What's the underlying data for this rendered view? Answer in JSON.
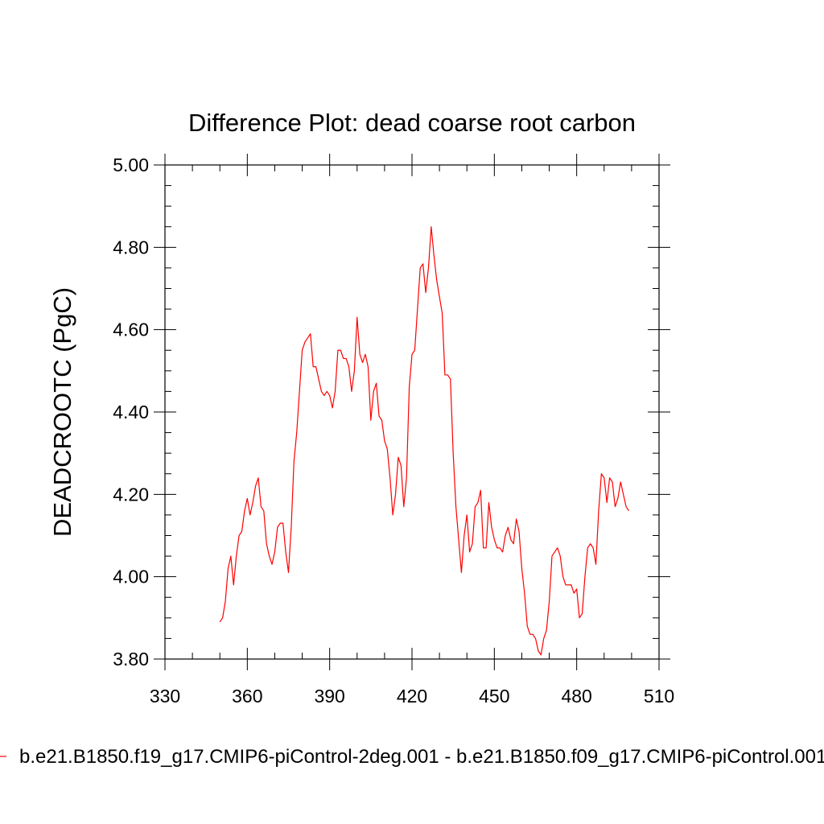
{
  "chart_data": {
    "type": "line",
    "title": "Difference Plot: dead coarse root carbon",
    "xlabel": "",
    "ylabel": "DEADCROOTC  (PgC)",
    "xlim": [
      330,
      510
    ],
    "ylim": [
      3.8,
      5.0
    ],
    "x_ticks": [
      330,
      360,
      390,
      420,
      450,
      480,
      510
    ],
    "x_tick_labels": [
      "330",
      "360",
      "390",
      "420",
      "450",
      "480",
      "510"
    ],
    "y_ticks": [
      3.8,
      4.0,
      4.2,
      4.4,
      4.6,
      4.8,
      5.0
    ],
    "y_tick_labels": [
      "3.80",
      "4.00",
      "4.20",
      "4.40",
      "4.60",
      "4.80",
      "5.00"
    ],
    "grid": false,
    "legend_position": "bottom",
    "line_color": "#ff0000",
    "series": [
      {
        "name": "b.e21.B1850.f19_g17.CMIP6-piControl-2deg.001 - b.e21.B1850.f09_g17.CMIP6-piControl.001",
        "x": [
          350,
          351,
          352,
          353,
          354,
          355,
          356,
          357,
          358,
          359,
          360,
          361,
          362,
          363,
          364,
          365,
          366,
          367,
          368,
          369,
          370,
          371,
          372,
          373,
          374,
          375,
          376,
          377,
          378,
          379,
          380,
          381,
          382,
          383,
          384,
          385,
          386,
          387,
          388,
          389,
          390,
          391,
          392,
          393,
          394,
          395,
          396,
          397,
          398,
          399,
          400,
          401,
          402,
          403,
          404,
          405,
          406,
          407,
          408,
          409,
          410,
          411,
          412,
          413,
          414,
          415,
          416,
          417,
          418,
          419,
          420,
          421,
          422,
          423,
          424,
          425,
          426,
          427,
          428,
          429,
          430,
          431,
          432,
          433,
          434,
          435,
          436,
          437,
          438,
          439,
          440,
          441,
          442,
          443,
          444,
          445,
          446,
          447,
          448,
          449,
          450,
          451,
          452,
          453,
          454,
          455,
          456,
          457,
          458,
          459,
          460,
          461,
          462,
          463,
          464,
          465,
          466,
          467,
          468,
          469,
          470,
          471,
          472,
          473,
          474,
          475,
          476,
          477,
          478,
          479,
          480,
          481,
          482,
          483,
          484,
          485,
          486,
          487,
          488,
          489,
          490,
          491,
          492,
          493,
          494,
          495,
          496,
          497,
          498,
          499
        ],
        "y": [
          3.89,
          3.9,
          3.94,
          4.02,
          4.05,
          3.98,
          4.05,
          4.1,
          4.11,
          4.16,
          4.19,
          4.15,
          4.18,
          4.22,
          4.24,
          4.17,
          4.16,
          4.08,
          4.05,
          4.03,
          4.06,
          4.12,
          4.13,
          4.13,
          4.06,
          4.01,
          4.12,
          4.28,
          4.35,
          4.45,
          4.55,
          4.57,
          4.58,
          4.59,
          4.51,
          4.51,
          4.48,
          4.45,
          4.44,
          4.45,
          4.44,
          4.41,
          4.45,
          4.55,
          4.55,
          4.53,
          4.53,
          4.51,
          4.45,
          4.5,
          4.63,
          4.54,
          4.52,
          4.54,
          4.51,
          4.38,
          4.45,
          4.47,
          4.39,
          4.38,
          4.33,
          4.31,
          4.24,
          4.15,
          4.2,
          4.29,
          4.27,
          4.17,
          4.24,
          4.46,
          4.54,
          4.55,
          4.65,
          4.75,
          4.76,
          4.69,
          4.75,
          4.85,
          4.78,
          4.72,
          4.68,
          4.64,
          4.49,
          4.49,
          4.48,
          4.3,
          4.17,
          4.09,
          4.01,
          4.1,
          4.15,
          4.06,
          4.08,
          4.17,
          4.18,
          4.21,
          4.07,
          4.07,
          4.18,
          4.12,
          4.09,
          4.07,
          4.07,
          4.06,
          4.1,
          4.12,
          4.09,
          4.08,
          4.14,
          4.11,
          4.02,
          3.96,
          3.88,
          3.86,
          3.86,
          3.85,
          3.82,
          3.81,
          3.85,
          3.87,
          3.94,
          4.05,
          4.06,
          4.07,
          4.05,
          4.0,
          3.98,
          3.98,
          3.98,
          3.96,
          3.97,
          3.9,
          3.91,
          4.0,
          4.07,
          4.08,
          4.07,
          4.03,
          4.16,
          4.25,
          4.24,
          4.18,
          4.24,
          4.23,
          4.17,
          4.19,
          4.23,
          4.2,
          4.17,
          4.16
        ]
      }
    ]
  }
}
